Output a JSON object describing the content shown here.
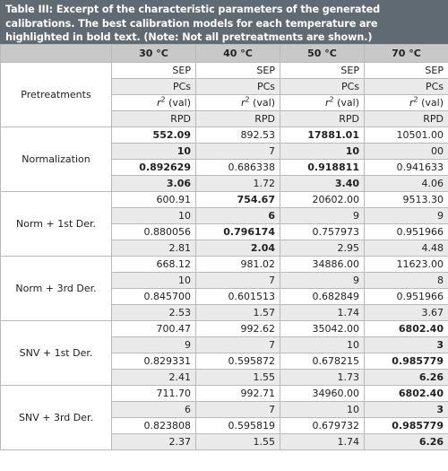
{
  "caption": "Table III: Excerpt of the characteristic parameters of the generated calibrations. The best calibration models for each temperature are highlighted in bold text. (Note: Not all pretreatments are shown.)",
  "headers": [
    "",
    "30 °C",
    "40 °C",
    "50 °C",
    "70 °C"
  ],
  "pretreatments": {
    "label": "Pretreatments",
    "rows": [
      [
        "SEP",
        "SEP",
        "SEP",
        "SEP"
      ],
      [
        "PCs",
        "PCs",
        "PCs",
        "PCs"
      ],
      [
        "r2 (val)",
        "r2 (val)",
        "r2 (val)",
        "r2 (val)"
      ],
      [
        "RPD",
        "RPD",
        "RPD",
        "RPD"
      ]
    ]
  },
  "groups": [
    {
      "label": "Normalization",
      "rows": [
        [
          "552.09",
          "892.53",
          "17881.01",
          "10501.00"
        ],
        [
          "10",
          "7",
          "10",
          "00"
        ],
        [
          "0.892629",
          "0.686338",
          "0.918811",
          "0.941633"
        ],
        [
          "3.06",
          "1.72",
          "3.40",
          "4.06"
        ]
      ],
      "bold_col": [
        0,
        2
      ]
    },
    {
      "label": "Norm + 1st Der.",
      "rows": [
        [
          "600.91",
          "754.67",
          "20602.00",
          "9513.30"
        ],
        [
          "10",
          "6",
          "9",
          "9"
        ],
        [
          "0.880056",
          "0.796174",
          "0.757973",
          "0.951966"
        ],
        [
          "2.81",
          "2.04",
          "2.95",
          "4.48"
        ]
      ],
      "bold_col": [
        1
      ]
    },
    {
      "label": "Norm + 3rd Der.",
      "rows": [
        [
          "668.12",
          "981.02",
          "34886.00",
          "11623.00"
        ],
        [
          "10",
          "7",
          "9",
          "8"
        ],
        [
          "0.845700",
          "0.601513",
          "0.682849",
          "0.951966"
        ],
        [
          "2.53",
          "1.57",
          "1.74",
          "3.67"
        ]
      ],
      "bold_col": []
    },
    {
      "label": "SNV + 1st Der.",
      "rows": [
        [
          "700.47",
          "992.62",
          "35042.00",
          "6802.40"
        ],
        [
          "9",
          "7",
          "10",
          "3"
        ],
        [
          "0.829331",
          "0.595872",
          "0.678215",
          "0.985779"
        ],
        [
          "2.41",
          "1.55",
          "1.73",
          "6.26"
        ]
      ],
      "bold_col": [
        3
      ]
    },
    {
      "label": "SNV + 3rd Der.",
      "rows": [
        [
          "711.70",
          "992.71",
          "34960.00",
          "6802.40"
        ],
        [
          "6",
          "7",
          "10",
          "3"
        ],
        [
          "0.823808",
          "0.595819",
          "0.679732",
          "0.985779"
        ],
        [
          "2.37",
          "1.55",
          "1.74",
          "6.26"
        ]
      ],
      "bold_col": [
        3
      ]
    }
  ]
}
